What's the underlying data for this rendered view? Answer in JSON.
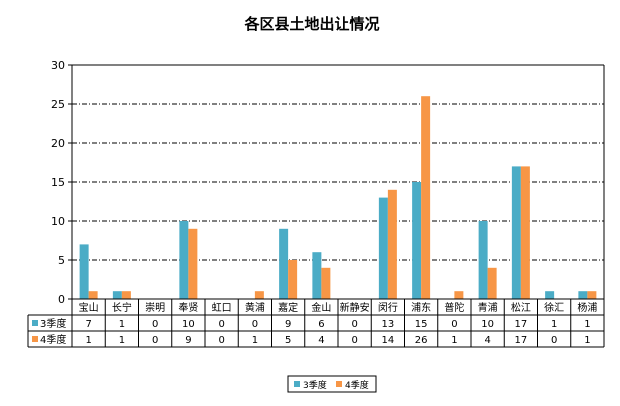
{
  "chart_data": {
    "type": "bar",
    "title": "各区县土地出让情况",
    "categories": [
      "宝山",
      "长宁",
      "崇明",
      "奉贤",
      "虹口",
      "黄浦",
      "嘉定",
      "金山",
      "新静安",
      "闵行",
      "浦东",
      "普陀",
      "青浦",
      "松江",
      "徐汇",
      "杨浦"
    ],
    "series": [
      {
        "name": "3季度",
        "color": "#4bacc6",
        "values": [
          7,
          1,
          0,
          10,
          0,
          0,
          9,
          6,
          0,
          13,
          15,
          0,
          10,
          17,
          1,
          1
        ]
      },
      {
        "name": "4季度",
        "color": "#f79646",
        "values": [
          1,
          1,
          0,
          9,
          0,
          1,
          5,
          4,
          0,
          14,
          26,
          1,
          4,
          17,
          0,
          1
        ]
      }
    ],
    "ylim": [
      0,
      30
    ],
    "yticks": [
      0,
      5,
      10,
      15,
      20,
      25,
      30
    ],
    "grid": true,
    "data_table": true,
    "legend": "bottom"
  }
}
